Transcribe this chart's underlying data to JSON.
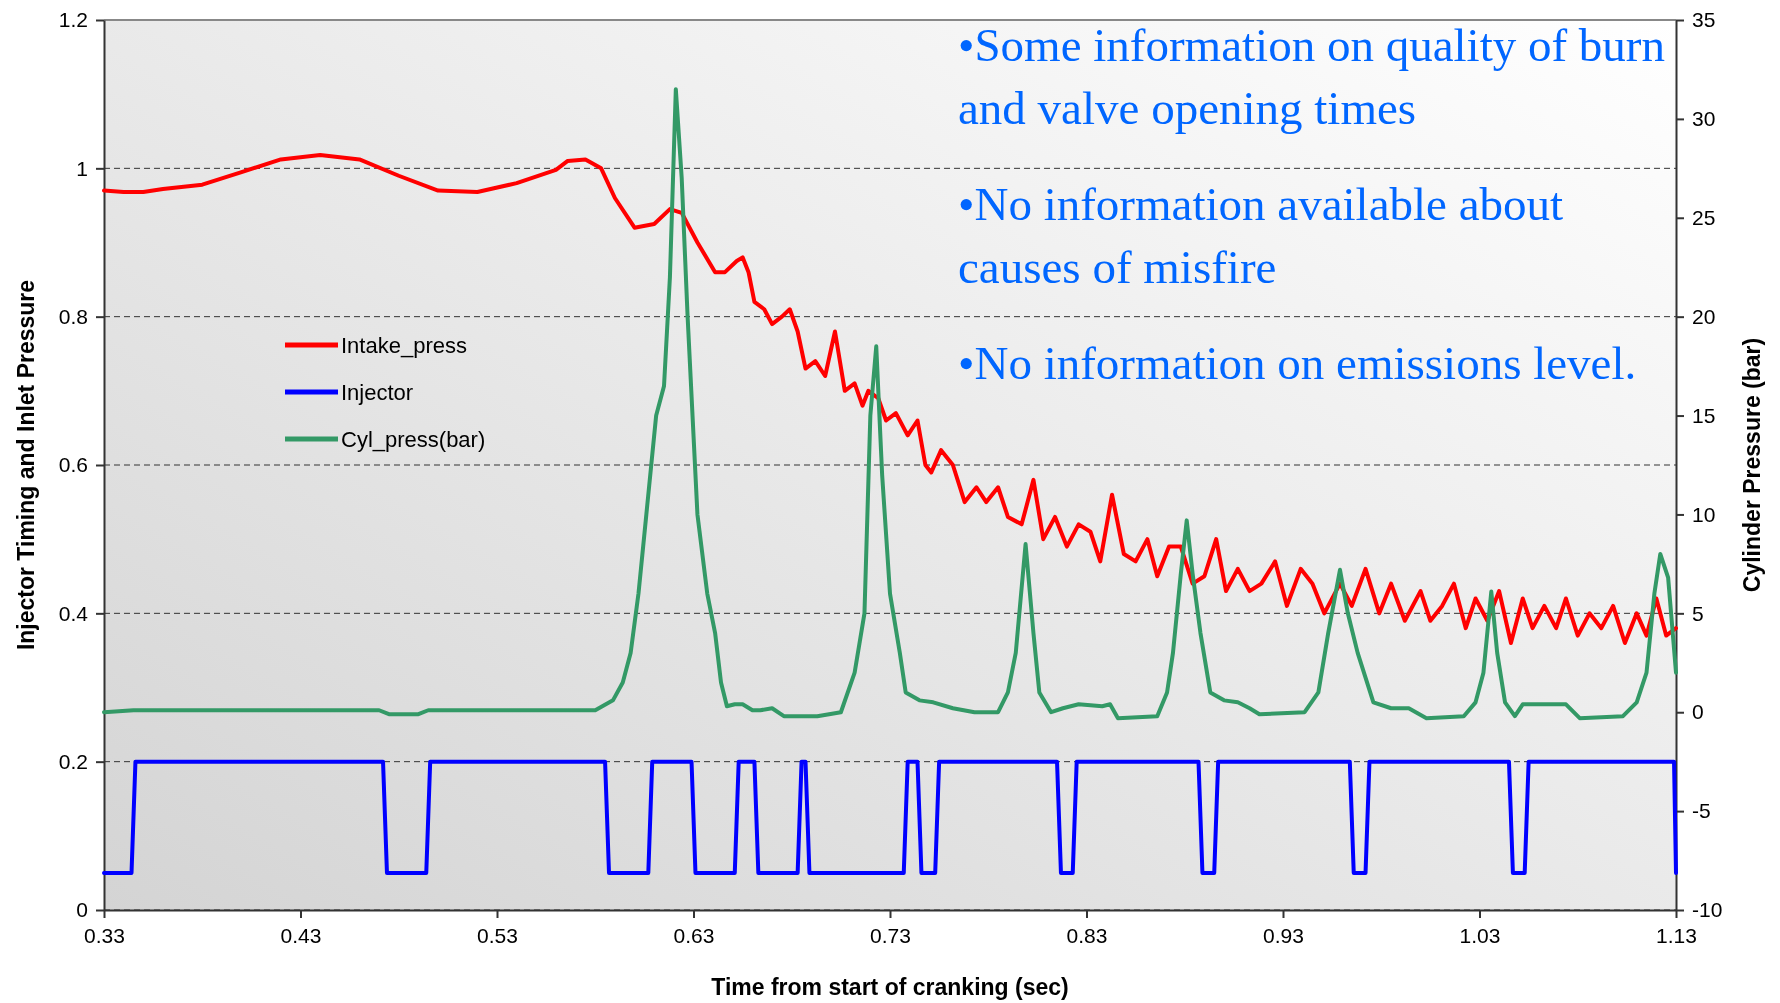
{
  "chart_data": {
    "type": "line",
    "xlabel": "Time from start of cranking (sec)",
    "ylabel": "Injector Timing and Inlet Pressure",
    "y2label": "Cylinder Pressure (bar)",
    "xlim": [
      0.33,
      1.13
    ],
    "xticks": [
      0.33,
      0.43,
      0.53,
      0.63,
      0.73,
      0.83,
      0.93,
      1.03,
      1.13
    ],
    "ylim": [
      0,
      1.2
    ],
    "yticks": [
      0,
      0.2,
      0.4,
      0.6,
      0.8,
      1,
      1.2
    ],
    "y2lim": [
      -10,
      35
    ],
    "y2ticks": [
      -10,
      -5,
      0,
      5,
      10,
      15,
      20,
      25,
      30,
      35
    ],
    "grid": "y",
    "legend": "left",
    "line_style": "solid",
    "marker": "none",
    "annotations": [
      "•Some information on quality of burn and valve opening times",
      "•No information available about causes of misfire",
      "•No information on emissions level."
    ],
    "series": [
      {
        "name": "Intake_press",
        "color": "#ff0000",
        "x": [
          0.33,
          0.34,
          0.35,
          0.36,
          0.38,
          0.4,
          0.42,
          0.44,
          0.46,
          0.48,
          0.5,
          0.52,
          0.54,
          0.56,
          0.566,
          0.575,
          0.583,
          0.59,
          0.6,
          0.61,
          0.618,
          0.624,
          0.632,
          0.641,
          0.646,
          0.652,
          0.655,
          0.658,
          0.661,
          0.666,
          0.67,
          0.675,
          0.679,
          0.683,
          0.687,
          0.692,
          0.697,
          0.702,
          0.707,
          0.712,
          0.716,
          0.719,
          0.724,
          0.728,
          0.733,
          0.739,
          0.744,
          0.748,
          0.751,
          0.756,
          0.762,
          0.768,
          0.774,
          0.779,
          0.785,
          0.79,
          0.797,
          0.803,
          0.808,
          0.814,
          0.82,
          0.826,
          0.832,
          0.837,
          0.843,
          0.849,
          0.855,
          0.861,
          0.866,
          0.872,
          0.878,
          0.884,
          0.89,
          0.896,
          0.901,
          0.907,
          0.913,
          0.919,
          0.926,
          0.932,
          0.939,
          0.945,
          0.951,
          0.959,
          0.965,
          0.972,
          0.979,
          0.985,
          0.992,
          1.0,
          1.005,
          1.011,
          1.017,
          1.023,
          1.028,
          1.034,
          1.04,
          1.046,
          1.052,
          1.057,
          1.063,
          1.069,
          1.074,
          1.08,
          1.086,
          1.092,
          1.098,
          1.104,
          1.11,
          1.115,
          1.12,
          1.125,
          1.13
        ],
        "values": [
          0.97,
          0.968,
          0.968,
          0.972,
          0.978,
          0.995,
          1.012,
          1.018,
          1.012,
          0.99,
          0.97,
          0.968,
          0.98,
          0.998,
          1.01,
          1.012,
          1.0,
          0.96,
          0.92,
          0.925,
          0.945,
          0.94,
          0.9,
          0.86,
          0.86,
          0.875,
          0.88,
          0.86,
          0.82,
          0.81,
          0.79,
          0.8,
          0.81,
          0.78,
          0.73,
          0.74,
          0.72,
          0.78,
          0.7,
          0.71,
          0.68,
          0.7,
          0.69,
          0.66,
          0.67,
          0.64,
          0.66,
          0.6,
          0.59,
          0.62,
          0.6,
          0.55,
          0.57,
          0.55,
          0.57,
          0.53,
          0.52,
          0.58,
          0.5,
          0.53,
          0.49,
          0.52,
          0.51,
          0.47,
          0.56,
          0.48,
          0.47,
          0.5,
          0.45,
          0.49,
          0.49,
          0.44,
          0.45,
          0.5,
          0.43,
          0.46,
          0.43,
          0.44,
          0.47,
          0.41,
          0.46,
          0.44,
          0.4,
          0.44,
          0.41,
          0.46,
          0.4,
          0.44,
          0.39,
          0.43,
          0.39,
          0.41,
          0.44,
          0.38,
          0.42,
          0.39,
          0.43,
          0.36,
          0.42,
          0.38,
          0.41,
          0.38,
          0.42,
          0.37,
          0.4,
          0.38,
          0.41,
          0.36,
          0.4,
          0.37,
          0.42,
          0.37,
          0.38
        ]
      },
      {
        "name": "Injector",
        "color": "#0000ff",
        "x": [
          0.33,
          0.344,
          0.346,
          0.472,
          0.474,
          0.494,
          0.496,
          0.585,
          0.587,
          0.607,
          0.609,
          0.629,
          0.631,
          0.651,
          0.653,
          0.661,
          0.663,
          0.683,
          0.685,
          0.687,
          0.689,
          0.737,
          0.739,
          0.744,
          0.746,
          0.753,
          0.755,
          0.815,
          0.817,
          0.823,
          0.825,
          0.887,
          0.889,
          0.895,
          0.897,
          0.964,
          0.966,
          0.972,
          0.974,
          1.045,
          1.047,
          1.053,
          1.055,
          1.129,
          1.13
        ],
        "values": [
          0.05,
          0.05,
          0.2,
          0.2,
          0.05,
          0.05,
          0.2,
          0.2,
          0.05,
          0.05,
          0.2,
          0.2,
          0.05,
          0.05,
          0.2,
          0.2,
          0.05,
          0.05,
          0.2,
          0.2,
          0.05,
          0.05,
          0.2,
          0.2,
          0.05,
          0.05,
          0.2,
          0.2,
          0.05,
          0.05,
          0.2,
          0.2,
          0.05,
          0.05,
          0.2,
          0.2,
          0.05,
          0.05,
          0.2,
          0.2,
          0.05,
          0.05,
          0.2,
          0.2,
          0.05
        ]
      },
      {
        "name": "Cyl_press(bar)",
        "color": "#339966",
        "axis": "y2",
        "x": [
          0.33,
          0.345,
          0.4,
          0.47,
          0.475,
          0.49,
          0.495,
          0.58,
          0.589,
          0.594,
          0.598,
          0.602,
          0.606,
          0.611,
          0.615,
          0.618,
          0.621,
          0.624,
          0.627,
          0.632,
          0.637,
          0.641,
          0.644,
          0.647,
          0.651,
          0.655,
          0.66,
          0.664,
          0.67,
          0.676,
          0.681,
          0.693,
          0.705,
          0.712,
          0.717,
          0.72,
          0.723,
          0.726,
          0.73,
          0.735,
          0.738,
          0.745,
          0.752,
          0.762,
          0.773,
          0.785,
          0.79,
          0.794,
          0.799,
          0.803,
          0.806,
          0.812,
          0.818,
          0.826,
          0.838,
          0.842,
          0.846,
          0.866,
          0.871,
          0.874,
          0.878,
          0.881,
          0.884,
          0.888,
          0.893,
          0.9,
          0.907,
          0.913,
          0.918,
          0.941,
          0.948,
          0.953,
          0.959,
          0.963,
          0.968,
          0.976,
          0.985,
          0.994,
          1.003,
          1.022,
          1.028,
          1.032,
          1.036,
          1.039,
          1.043,
          1.048,
          1.052,
          1.057,
          1.074,
          1.081,
          1.103,
          1.11,
          1.115,
          1.119,
          1.122,
          1.126,
          1.13
        ],
        "values": [
          0,
          0.1,
          0.1,
          0.1,
          -0.1,
          -0.1,
          0.1,
          0.1,
          0.6,
          1.5,
          3,
          6,
          10,
          15,
          16.5,
          22,
          31.5,
          27,
          20,
          10,
          6,
          4,
          1.5,
          0.3,
          0.4,
          0.4,
          0.1,
          0.1,
          0.2,
          -0.2,
          -0.2,
          -0.2,
          0,
          2,
          5,
          15,
          18.5,
          12,
          6,
          3,
          1,
          0.6,
          0.5,
          0.2,
          0,
          0,
          1,
          3,
          8.5,
          4,
          1,
          0,
          0.2,
          0.4,
          0.3,
          0.4,
          -0.3,
          -0.2,
          1,
          3,
          7,
          9.7,
          7,
          4,
          1,
          0.6,
          0.5,
          0.2,
          -0.1,
          0,
          1,
          4,
          7.2,
          5,
          3,
          0.5,
          0.2,
          0.2,
          -0.3,
          -0.2,
          0.5,
          2,
          6.1,
          3,
          0.5,
          -0.2,
          0.4,
          0.4,
          0.4,
          -0.3,
          -0.2,
          0.5,
          2,
          6,
          8,
          6.8,
          2
        ]
      }
    ]
  }
}
